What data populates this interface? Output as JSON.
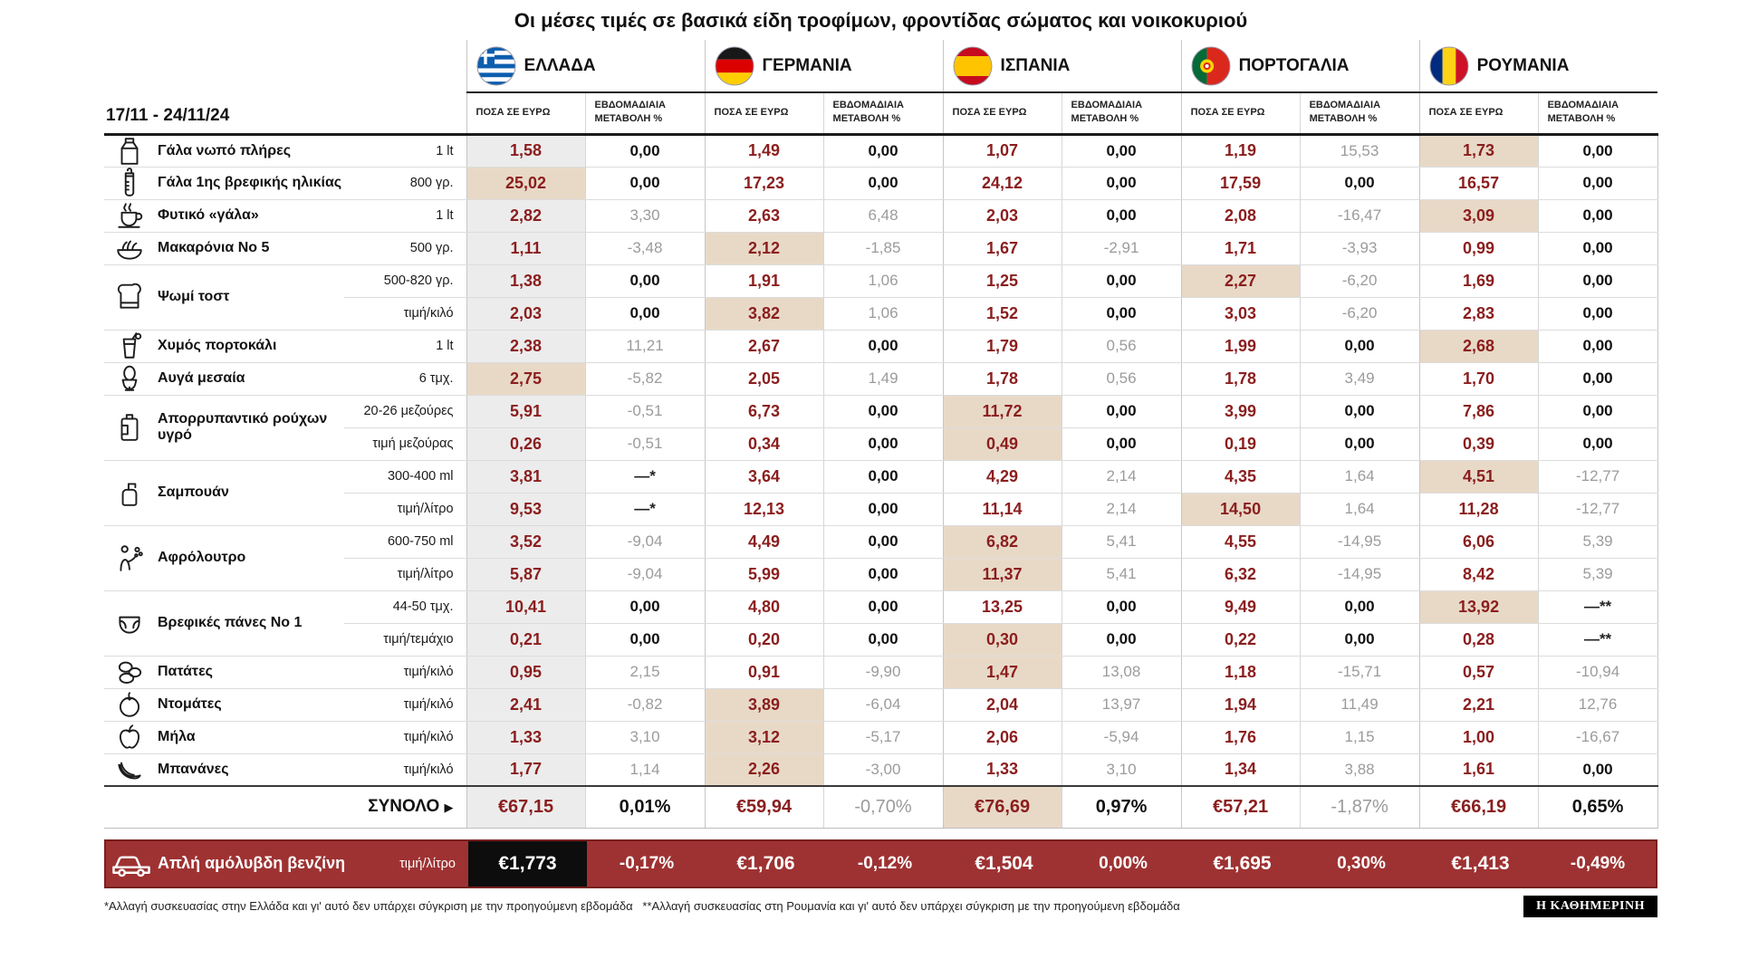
{
  "title": "Οι μέσες τιμές σε βασικά είδη τροφίμων, φροντίδας σώματος και νοικοκυριού",
  "date_range": "17/11 - 24/11/24",
  "column_headers": {
    "price": "ΠΟΣΑ ΣΕ ΕΥΡΩ",
    "change": "ΕΒΔΟΜΑΔΙΑΙΑ ΜΕΤΑΒΟΛΗ %"
  },
  "countries": [
    {
      "code": "gr",
      "name": "ΕΛΛΑΔΑ"
    },
    {
      "code": "de",
      "name": "ΓΕΡΜΑΝΙΑ"
    },
    {
      "code": "es",
      "name": "ΙΣΠΑΝΙΑ"
    },
    {
      "code": "pt",
      "name": "ΠΟΡΤΟΓΑΛΙΑ"
    },
    {
      "code": "ro",
      "name": "ΡΟΥΜΑΝΙΑ"
    }
  ],
  "colors": {
    "price_text": "#8b1e1e",
    "highlight": "#e8d9c7",
    "greece_column": "#ececec",
    "fuel_band": "#9e3232",
    "zero_change": "#111111",
    "neutral_change": "#9b9b9b"
  },
  "chart_data": {
    "type": "table",
    "title": "Οι μέσες τιμές σε βασικά είδη τροφίμων, φροντίδας σώματος και νοικοκυριού",
    "rows": [
      {
        "name": "Γάλα νωπό πλήρες",
        "icon": "milk-carton-icon",
        "lines": [
          {
            "unit": "1 lt",
            "cells": [
              {
                "price": "1,58",
                "change": "0,00"
              },
              {
                "price": "1,49",
                "change": "0,00"
              },
              {
                "price": "1,07",
                "change": "0,00"
              },
              {
                "price": "1,19",
                "change": "15,53"
              },
              {
                "price": "1,73",
                "change": "0,00",
                "hl": true
              }
            ]
          }
        ]
      },
      {
        "name": "Γάλα 1ης βρεφικής ηλικίας",
        "icon": "baby-bottle-icon",
        "lines": [
          {
            "unit": "800 γρ.",
            "cells": [
              {
                "price": "25,02",
                "change": "0,00",
                "hl": true
              },
              {
                "price": "17,23",
                "change": "0,00"
              },
              {
                "price": "24,12",
                "change": "0,00"
              },
              {
                "price": "17,59",
                "change": "0,00"
              },
              {
                "price": "16,57",
                "change": "0,00"
              }
            ]
          }
        ]
      },
      {
        "name": "Φυτικό «γάλα»",
        "icon": "plant-milk-cup-icon",
        "lines": [
          {
            "unit": "1 lt",
            "cells": [
              {
                "price": "2,82",
                "change": "3,30"
              },
              {
                "price": "2,63",
                "change": "6,48"
              },
              {
                "price": "2,03",
                "change": "0,00"
              },
              {
                "price": "2,08",
                "change": "-16,47"
              },
              {
                "price": "3,09",
                "change": "0,00",
                "hl": true
              }
            ]
          }
        ]
      },
      {
        "name": "Μακαρόνια Νο 5",
        "icon": "spaghetti-icon",
        "lines": [
          {
            "unit": "500 γρ.",
            "cells": [
              {
                "price": "1,11",
                "change": "-3,48"
              },
              {
                "price": "2,12",
                "change": "-1,85",
                "hl": true
              },
              {
                "price": "1,67",
                "change": "-2,91"
              },
              {
                "price": "1,71",
                "change": "-3,93"
              },
              {
                "price": "0,99",
                "change": "0,00"
              }
            ]
          }
        ]
      },
      {
        "name": "Ψωμί τοστ",
        "icon": "toast-bread-icon",
        "lines": [
          {
            "unit": "500-820 γρ.",
            "cells": [
              {
                "price": "1,38",
                "change": "0,00"
              },
              {
                "price": "1,91",
                "change": "1,06"
              },
              {
                "price": "1,25",
                "change": "0,00"
              },
              {
                "price": "2,27",
                "change": "-6,20",
                "hl": true
              },
              {
                "price": "1,69",
                "change": "0,00"
              }
            ]
          },
          {
            "unit": "τιμή/κιλό",
            "cells": [
              {
                "price": "2,03",
                "change": "0,00"
              },
              {
                "price": "3,82",
                "change": "1,06",
                "hl": true
              },
              {
                "price": "1,52",
                "change": "0,00"
              },
              {
                "price": "3,03",
                "change": "-6,20"
              },
              {
                "price": "2,83",
                "change": "0,00"
              }
            ]
          }
        ]
      },
      {
        "name": "Χυμός πορτοκάλι",
        "icon": "orange-juice-icon",
        "lines": [
          {
            "unit": "1 lt",
            "cells": [
              {
                "price": "2,38",
                "change": "11,21"
              },
              {
                "price": "2,67",
                "change": "0,00"
              },
              {
                "price": "1,79",
                "change": "0,56"
              },
              {
                "price": "1,99",
                "change": "0,00"
              },
              {
                "price": "2,68",
                "change": "0,00",
                "hl": true
              }
            ]
          }
        ]
      },
      {
        "name": "Αυγά μεσαία",
        "icon": "egg-icon",
        "lines": [
          {
            "unit": "6 τμχ.",
            "cells": [
              {
                "price": "2,75",
                "change": "-5,82",
                "hl": true
              },
              {
                "price": "2,05",
                "change": "1,49"
              },
              {
                "price": "1,78",
                "change": "0,56"
              },
              {
                "price": "1,78",
                "change": "3,49"
              },
              {
                "price": "1,70",
                "change": "0,00"
              }
            ]
          }
        ]
      },
      {
        "name": "Απορρυπαντικό ρούχων υγρό",
        "icon": "detergent-bottle-icon",
        "lines": [
          {
            "unit": "20-26 μεζούρες",
            "cells": [
              {
                "price": "5,91",
                "change": "-0,51"
              },
              {
                "price": "6,73",
                "change": "0,00"
              },
              {
                "price": "11,72",
                "change": "0,00",
                "hl": true
              },
              {
                "price": "3,99",
                "change": "0,00"
              },
              {
                "price": "7,86",
                "change": "0,00"
              }
            ]
          },
          {
            "unit": "τιμή μεζούρας",
            "cells": [
              {
                "price": "0,26",
                "change": "-0,51"
              },
              {
                "price": "0,34",
                "change": "0,00"
              },
              {
                "price": "0,49",
                "change": "0,00",
                "hl": true
              },
              {
                "price": "0,19",
                "change": "0,00"
              },
              {
                "price": "0,39",
                "change": "0,00"
              }
            ]
          }
        ]
      },
      {
        "name": "Σαμπουάν",
        "icon": "shampoo-bottle-icon",
        "lines": [
          {
            "unit": "300-400 ml",
            "cells": [
              {
                "price": "3,81",
                "change": "—*"
              },
              {
                "price": "3,64",
                "change": "0,00"
              },
              {
                "price": "4,29",
                "change": "2,14"
              },
              {
                "price": "4,35",
                "change": "1,64"
              },
              {
                "price": "4,51",
                "change": "-12,77",
                "hl": true
              }
            ]
          },
          {
            "unit": "τιμή/λίτρο",
            "cells": [
              {
                "price": "9,53",
                "change": "—*"
              },
              {
                "price": "12,13",
                "change": "0,00"
              },
              {
                "price": "11,14",
                "change": "2,14"
              },
              {
                "price": "14,50",
                "change": "1,64",
                "hl": true
              },
              {
                "price": "11,28",
                "change": "-12,77"
              }
            ]
          }
        ]
      },
      {
        "name": "Αφρόλουτρο",
        "icon": "shower-gel-icon",
        "lines": [
          {
            "unit": "600-750 ml",
            "cells": [
              {
                "price": "3,52",
                "change": "-9,04"
              },
              {
                "price": "4,49",
                "change": "0,00"
              },
              {
                "price": "6,82",
                "change": "5,41",
                "hl": true
              },
              {
                "price": "4,55",
                "change": "-14,95"
              },
              {
                "price": "6,06",
                "change": "5,39"
              }
            ]
          },
          {
            "unit": "τιμή/λίτρο",
            "cells": [
              {
                "price": "5,87",
                "change": "-9,04"
              },
              {
                "price": "5,99",
                "change": "0,00"
              },
              {
                "price": "11,37",
                "change": "5,41",
                "hl": true
              },
              {
                "price": "6,32",
                "change": "-14,95"
              },
              {
                "price": "8,42",
                "change": "5,39"
              }
            ]
          }
        ]
      },
      {
        "name": "Βρεφικές πάνες Νο 1",
        "icon": "diaper-icon",
        "lines": [
          {
            "unit": "44-50 τμχ.",
            "cells": [
              {
                "price": "10,41",
                "change": "0,00"
              },
              {
                "price": "4,80",
                "change": "0,00"
              },
              {
                "price": "13,25",
                "change": "0,00"
              },
              {
                "price": "9,49",
                "change": "0,00"
              },
              {
                "price": "13,92",
                "change": "—**",
                "hl": true
              }
            ]
          },
          {
            "unit": "τιμή/τεμάχιο",
            "cells": [
              {
                "price": "0,21",
                "change": "0,00"
              },
              {
                "price": "0,20",
                "change": "0,00"
              },
              {
                "price": "0,30",
                "change": "0,00",
                "hl": true
              },
              {
                "price": "0,22",
                "change": "0,00"
              },
              {
                "price": "0,28",
                "change": "—**"
              }
            ]
          }
        ]
      },
      {
        "name": "Πατάτες",
        "icon": "potatoes-icon",
        "lines": [
          {
            "unit": "τιμή/κιλό",
            "cells": [
              {
                "price": "0,95",
                "change": "2,15"
              },
              {
                "price": "0,91",
                "change": "-9,90"
              },
              {
                "price": "1,47",
                "change": "13,08",
                "hl": true
              },
              {
                "price": "1,18",
                "change": "-15,71"
              },
              {
                "price": "0,57",
                "change": "-10,94"
              }
            ]
          }
        ]
      },
      {
        "name": "Ντομάτες",
        "icon": "tomato-icon",
        "lines": [
          {
            "unit": "τιμή/κιλό",
            "cells": [
              {
                "price": "2,41",
                "change": "-0,82"
              },
              {
                "price": "3,89",
                "change": "-6,04",
                "hl": true
              },
              {
                "price": "2,04",
                "change": "13,97"
              },
              {
                "price": "1,94",
                "change": "11,49"
              },
              {
                "price": "2,21",
                "change": "12,76"
              }
            ]
          }
        ]
      },
      {
        "name": "Μήλα",
        "icon": "apple-icon",
        "lines": [
          {
            "unit": "τιμή/κιλό",
            "cells": [
              {
                "price": "1,33",
                "change": "3,10"
              },
              {
                "price": "3,12",
                "change": "-5,17",
                "hl": true
              },
              {
                "price": "2,06",
                "change": "-5,94"
              },
              {
                "price": "1,76",
                "change": "1,15"
              },
              {
                "price": "1,00",
                "change": "-16,67"
              }
            ]
          }
        ]
      },
      {
        "name": "Μπανάνες",
        "icon": "bananas-icon",
        "lines": [
          {
            "unit": "τιμή/κιλό",
            "cells": [
              {
                "price": "1,77",
                "change": "1,14"
              },
              {
                "price": "2,26",
                "change": "-3,00",
                "hl": true
              },
              {
                "price": "1,33",
                "change": "3,10"
              },
              {
                "price": "1,34",
                "change": "3,88"
              },
              {
                "price": "1,61",
                "change": "0,00"
              }
            ]
          }
        ]
      }
    ],
    "totals": {
      "label": "ΣΥΝΟΛΟ",
      "values": [
        {
          "price": "€67,15",
          "change": "0,01%"
        },
        {
          "price": "€59,94",
          "change": "-0,70%"
        },
        {
          "price": "€76,69",
          "change": "0,97%",
          "hl": true
        },
        {
          "price": "€57,21",
          "change": "-1,87%"
        },
        {
          "price": "€66,19",
          "change": "0,65%"
        }
      ]
    },
    "fuel": {
      "name": "Απλή αμόλυβδη βενζίνη",
      "unit": "τιμή/λίτρο",
      "values": [
        {
          "price": "€1,773",
          "change": "-0,17%"
        },
        {
          "price": "€1,706",
          "change": "-0,12%"
        },
        {
          "price": "€1,504",
          "change": "0,00%"
        },
        {
          "price": "€1,695",
          "change": "0,30%"
        },
        {
          "price": "€1,413",
          "change": "-0,49%"
        }
      ]
    }
  },
  "footnote": "*Αλλαγή συσκευασίας στην Ελλάδα και γι' αυτό δεν υπάρχει σύγκριση με την προηγούμενη εβδομάδα   **Αλλαγή συσκευασίας στη Ρουμανία και γι' αυτό δεν υπάρχει σύγκριση με την προηγούμενη εβδομάδα",
  "brand": "Η ΚΑΘΗΜΕΡΙΝΗ"
}
